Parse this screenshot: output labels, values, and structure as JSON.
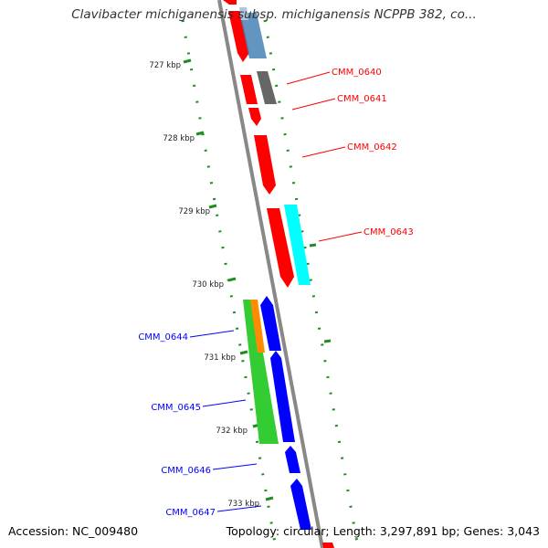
{
  "title": "Clavibacter michiganensis subsp. michiganensis NCPPB 382, co...",
  "footer": {
    "accession": "Accession: NC_009480",
    "summary": "Topology: circular; Length: 3,297,891 bp; Genes: 3,043"
  },
  "colors": {
    "forward_gene": "#ff0000",
    "reverse_gene": "#0000ff",
    "cyan_feature": "#00ffff",
    "gray_feature": "#666666",
    "steelblue_feature": "#4682b4",
    "green_feature": "#33cc33",
    "orange_feature": "#ff8c00",
    "tick_color": "#228b22",
    "backbone": "#888888"
  },
  "ticks": [
    {
      "label": "727 kbp"
    },
    {
      "label": "728 kbp"
    },
    {
      "label": "729 kbp"
    },
    {
      "label": "730 kbp"
    },
    {
      "label": "731 kbp"
    },
    {
      "label": "732 kbp"
    },
    {
      "label": "733 kbp"
    }
  ],
  "gene_labels": [
    {
      "name": "CMM_0640",
      "strand": "forward"
    },
    {
      "name": "CMM_0641",
      "strand": "forward"
    },
    {
      "name": "CMM_0642",
      "strand": "forward"
    },
    {
      "name": "CMM_0643",
      "strand": "forward"
    },
    {
      "name": "CMM_0644",
      "strand": "reverse"
    },
    {
      "name": "CMM_0645",
      "strand": "reverse"
    },
    {
      "name": "CMM_0646",
      "strand": "reverse"
    },
    {
      "name": "CMM_0647",
      "strand": "reverse"
    }
  ]
}
